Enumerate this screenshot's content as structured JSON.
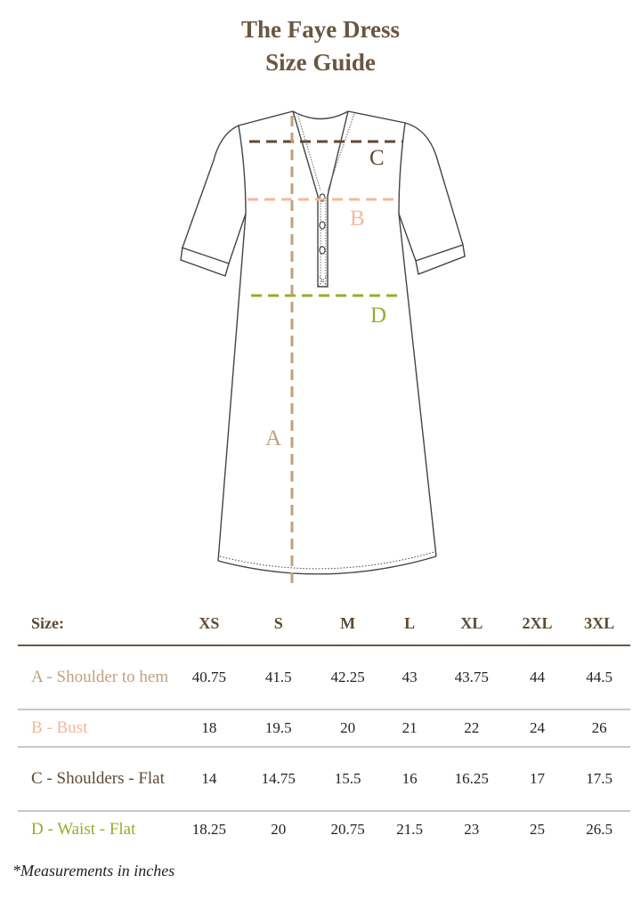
{
  "title": {
    "line1": "The Faye Dress",
    "line2": "Size Guide"
  },
  "colors": {
    "title": "#6b5641",
    "A": "#c3a07c",
    "B": "#f5b89a",
    "C": "#5e4a33",
    "D": "#9aab2c"
  },
  "diagram_labels": {
    "A": "A",
    "B": "B",
    "C": "C",
    "D": "D"
  },
  "table": {
    "header_label": "Size:",
    "sizes": [
      "XS",
      "S",
      "M",
      "L",
      "XL",
      "2XL",
      "3XL"
    ],
    "rows": [
      {
        "label": "A - Shoulder to hem",
        "values": [
          "40.75",
          "41.5",
          "42.25",
          "43",
          "43.75",
          "44",
          "44.5"
        ]
      },
      {
        "label": "B - Bust",
        "values": [
          "18",
          "19.5",
          "20",
          "21",
          "22",
          "24",
          "26"
        ]
      },
      {
        "label": "C - Shoulders - Flat",
        "values": [
          "14",
          "14.75",
          "15.5",
          "16",
          "16.25",
          "17",
          "17.5"
        ]
      },
      {
        "label": "D - Waist - Flat",
        "values": [
          "18.25",
          "20",
          "20.75",
          "21.5",
          "23",
          "25",
          "26.5"
        ]
      }
    ]
  },
  "footnote": "*Measurements in inches"
}
